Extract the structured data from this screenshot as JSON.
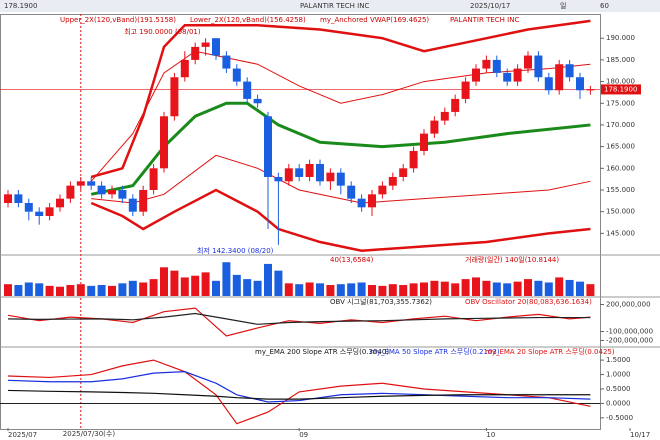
{
  "toolbar": [
    "178.1900",
    "PALANTIR TECH INC",
    "2025/10/17",
    "일",
    "60"
  ],
  "chart_data": [
    {
      "type": "candlestick",
      "up_color": "#e8141c",
      "down_color": "#1a5fe0",
      "legend": [
        "Upper_2X(120,vBand)(191.5158)",
        "Lower_2X(120,vBand)(156.4258)",
        "my_Anchored VWAP(169.4625)",
        "PALANTIR TECH INC"
      ],
      "open": [
        152,
        154,
        152,
        150,
        149,
        151,
        153,
        156,
        157,
        156,
        154,
        155,
        153,
        150,
        155,
        160,
        172,
        181,
        185,
        188,
        190,
        186,
        183,
        180,
        176,
        172,
        158,
        157,
        160,
        158,
        161,
        157,
        159,
        156,
        153,
        151,
        154,
        156,
        158,
        160,
        164,
        168,
        171,
        173,
        176,
        180,
        183,
        185,
        182,
        180,
        183,
        186,
        181,
        178,
        184,
        181,
        178
      ],
      "high": [
        155,
        155,
        153,
        151,
        152,
        154,
        157,
        158,
        158,
        157,
        156,
        156,
        154,
        156,
        161,
        173,
        182,
        187,
        189,
        190,
        190,
        187,
        184,
        181,
        177,
        173,
        159,
        161,
        161,
        162,
        162,
        160,
        160,
        157,
        154,
        155,
        157,
        159,
        161,
        165,
        169,
        172,
        174,
        177,
        181,
        184,
        186,
        186,
        183,
        184,
        187,
        187,
        182,
        185,
        185,
        182,
        179
      ],
      "low": [
        151,
        151,
        148,
        147,
        148,
        150,
        152,
        155,
        155,
        153,
        153,
        152,
        149,
        149,
        154,
        159,
        171,
        180,
        184,
        186,
        185,
        182,
        179,
        175,
        174,
        146,
        142.34,
        156,
        157,
        157,
        156,
        155,
        154,
        152,
        150,
        149,
        153,
        155,
        157,
        159,
        163,
        167,
        170,
        172,
        175,
        179,
        182,
        181,
        179,
        179,
        182,
        180,
        177,
        177,
        180,
        176,
        177
      ],
      "close": [
        154,
        152,
        150,
        149,
        151,
        153,
        156,
        157,
        156,
        154,
        155,
        153,
        150,
        155,
        160,
        172,
        181,
        185,
        188,
        189,
        186,
        183,
        180,
        176,
        175,
        158,
        157,
        160,
        158,
        161,
        157,
        159,
        156,
        153,
        151,
        154,
        156,
        158,
        160,
        164,
        168,
        171,
        173,
        176,
        180,
        183,
        185,
        182,
        180,
        183,
        186,
        181,
        178,
        184,
        181,
        178,
        178.19
      ],
      "last_label": {
        "value": 178.19,
        "label": "178.1900"
      },
      "annotations": [
        {
          "text": "최고 190.0000 (08/01)",
          "x": 19,
          "y": 190
        },
        {
          "text": "최저 142.3400 (08/20)",
          "x": 26,
          "y": 142.34
        }
      ],
      "overlays": [
        {
          "name": "Upper_2X",
          "color": "#e01010",
          "width": 2.5,
          "x": [
            8,
            11,
            13,
            15,
            17,
            24,
            30,
            36,
            40,
            44,
            50,
            56
          ],
          "values": [
            158,
            160,
            172,
            188,
            193,
            193,
            192,
            190,
            187,
            189,
            192,
            194
          ]
        },
        {
          "name": "Lower_2X",
          "color": "#e01010",
          "width": 2.5,
          "x": [
            8,
            11,
            13,
            16,
            20,
            24,
            26,
            30,
            34,
            40,
            46,
            52,
            56
          ],
          "values": [
            152,
            149,
            146,
            150,
            155,
            150,
            146,
            143,
            141,
            142,
            143,
            145,
            146
          ]
        },
        {
          "name": "Upper_1X",
          "color": "#e01010",
          "width": 1,
          "x": [
            8,
            12,
            15,
            18,
            24,
            28,
            32,
            36,
            40,
            46,
            52,
            56
          ],
          "values": [
            157,
            168,
            182,
            187,
            184,
            179,
            175,
            177,
            180,
            182,
            183,
            184
          ]
        },
        {
          "name": "Lower_1X",
          "color": "#e01010",
          "width": 1,
          "x": [
            8,
            12,
            15,
            20,
            24,
            28,
            34,
            40,
            46,
            52,
            56
          ],
          "values": [
            153,
            152,
            154,
            163,
            160,
            155,
            152,
            153,
            154,
            155,
            157
          ]
        },
        {
          "name": "my_Anchored VWAP",
          "color": "#1a8a1a",
          "width": 3,
          "x": [
            8,
            12,
            15,
            18,
            21,
            23,
            26,
            30,
            36,
            42,
            48,
            56
          ],
          "values": [
            154,
            156,
            165,
            172,
            175,
            175,
            170,
            166,
            165,
            166,
            168,
            170
          ]
        }
      ],
      "ylim": [
        140.7,
        194.2
      ],
      "yticks": [
        {
          "value": 145,
          "label": "145.000"
        },
        {
          "value": 150,
          "label": "150.000"
        },
        {
          "value": 155,
          "label": "155.000"
        },
        {
          "value": 160,
          "label": "160.000"
        },
        {
          "value": 165,
          "label": "165.000"
        },
        {
          "value": 170,
          "label": "170.000"
        },
        {
          "value": 175,
          "label": "175.000"
        },
        {
          "value": 180,
          "label": "180.000"
        },
        {
          "value": 185,
          "label": "185.000"
        },
        {
          "value": 190,
          "label": "190.000"
        }
      ],
      "crosshair": {
        "x": 7,
        "label": "2025/07/30(수)"
      }
    },
    {
      "type": "bar",
      "legend": [
        "40(13,6584)",
        "거래량(일간) 140일(10.8144)"
      ],
      "values": [
        14,
        13,
        16,
        15,
        12,
        11,
        13,
        14,
        12,
        13,
        12,
        15,
        18,
        16,
        20,
        34,
        30,
        22,
        24,
        28,
        18,
        40,
        25,
        20,
        18,
        38,
        30,
        15,
        14,
        16,
        15,
        13,
        14,
        15,
        16,
        13,
        12,
        14,
        13,
        15,
        16,
        18,
        17,
        15,
        20,
        22,
        18,
        16,
        15,
        17,
        20,
        18,
        16,
        22,
        19,
        17,
        14
      ],
      "ylim": [
        0,
        45
      ]
    },
    {
      "type": "line",
      "legend": [
        "OBV 시그널(81,703,355.7362)",
        "OBV Oscillator 20(80,083,636.1634)"
      ],
      "series": [
        {
          "name": "OBV",
          "color": "#e01010",
          "x": [
            0,
            3,
            6,
            9,
            12,
            15,
            18,
            21,
            24,
            27,
            30,
            33,
            36,
            39,
            42,
            45,
            48,
            51,
            54,
            56
          ],
          "values": [
            80000000,
            20000000,
            60000000,
            40000000,
            0,
            120000000,
            160000000,
            -150000000,
            -60000000,
            20000000,
            -10000000,
            30000000,
            0,
            40000000,
            70000000,
            20000000,
            60000000,
            90000000,
            40000000,
            60000000
          ]
        },
        {
          "name": "OBV 시그널",
          "color": "#222222",
          "x": [
            0,
            3,
            6,
            9,
            12,
            15,
            18,
            21,
            24,
            27,
            30,
            33,
            36,
            39,
            42,
            45,
            48,
            51,
            54,
            56
          ],
          "values": [
            40000000,
            35000000,
            38000000,
            40000000,
            30000000,
            60000000,
            100000000,
            40000000,
            -20000000,
            0,
            10000000,
            15000000,
            20000000,
            30000000,
            40000000,
            45000000,
            50000000,
            55000000,
            55000000,
            55000000
          ]
        }
      ],
      "ylim": [
        -250000000,
        250000000
      ],
      "yticks": [
        {
          "value": 200000000,
          "label": "200,000,000"
        },
        {
          "value": -100000000,
          "label": "-100,000,000"
        },
        {
          "value": -200000000,
          "label": "-200,000,000"
        }
      ]
    },
    {
      "type": "line",
      "legend": [
        "my_EMA 200 Slope ATR 스무딩(0.3040)",
        "my_EMA 50 Slope ATR 스무딩(0.2103)",
        "my_EMA 20 Slope ATR 스무딩(0.0425)"
      ],
      "series": [
        {
          "name": "EMA 20",
          "color": "#e01010",
          "x": [
            0,
            4,
            8,
            11,
            14,
            17,
            20,
            22,
            25,
            28,
            32,
            36,
            40,
            44,
            48,
            52,
            56
          ],
          "values": [
            0.95,
            0.9,
            1.0,
            1.3,
            1.5,
            1.1,
            0.3,
            -0.7,
            -0.3,
            0.4,
            0.6,
            0.7,
            0.5,
            0.4,
            0.3,
            0.2,
            -0.1
          ]
        },
        {
          "name": "EMA 50",
          "color": "#1a2ee0",
          "x": [
            0,
            4,
            8,
            11,
            14,
            17,
            20,
            22,
            25,
            28,
            32,
            36,
            40,
            44,
            48,
            52,
            56
          ],
          "values": [
            0.8,
            0.75,
            0.75,
            0.85,
            1.05,
            1.1,
            0.7,
            0.3,
            0.05,
            0.1,
            0.3,
            0.35,
            0.3,
            0.25,
            0.2,
            0.2,
            0.15
          ]
        },
        {
          "name": "EMA 200",
          "color": "#111111",
          "x": [
            0,
            4,
            8,
            11,
            14,
            17,
            20,
            22,
            25,
            28,
            32,
            36,
            40,
            44,
            48,
            52,
            56
          ],
          "values": [
            0.45,
            0.42,
            0.4,
            0.38,
            0.35,
            0.3,
            0.25,
            0.2,
            0.15,
            0.15,
            0.2,
            0.25,
            0.28,
            0.3,
            0.3,
            0.3,
            0.3
          ]
        }
      ],
      "ylim": [
        -0.85,
        1.85
      ],
      "yticks": [
        {
          "value": 1.5,
          "label": "1.5000"
        },
        {
          "value": 1,
          "label": "1.0000"
        },
        {
          "value": 0.5,
          "label": "0.5000"
        },
        {
          "value": 0,
          "label": "0.0000"
        },
        {
          "value": -0.5,
          "label": "-0.5000"
        }
      ],
      "xticks": [
        {
          "value": 0,
          "label": "2025/07"
        },
        {
          "value": 28,
          "label": "09"
        },
        {
          "value": 46,
          "label": "10"
        },
        {
          "value": 60,
          "label": "10/17"
        }
      ]
    }
  ]
}
